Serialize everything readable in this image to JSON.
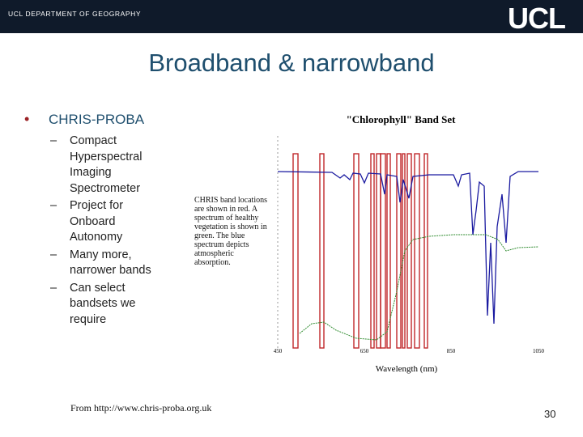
{
  "header": {
    "department": "UCL DEPARTMENT OF GEOGRAPHY",
    "logo": "UCL"
  },
  "title": "Broadband & narrowband",
  "bullets": [
    {
      "text": "CHRIS-PROBA",
      "subitems": [
        "Compact Hyperspectral Imaging Spectrometer",
        "Project for Onboard Autonomy",
        "Many more, narrower bands",
        "Can select bandsets we require"
      ]
    }
  ],
  "figure": {
    "title": "\"Chlorophyll\" Band Set",
    "caption": "CHRIS band locations are shown in red. A spectrum of healthy vegetation is shown in green. The blue spectrum depicts atmospheric absorption.",
    "xticks": [
      "450",
      "650",
      "850",
      "1050"
    ],
    "xlabel": "Wavelength (nm)"
  },
  "source": "From http://www.chris-proba.org.uk",
  "page_number": "30"
}
